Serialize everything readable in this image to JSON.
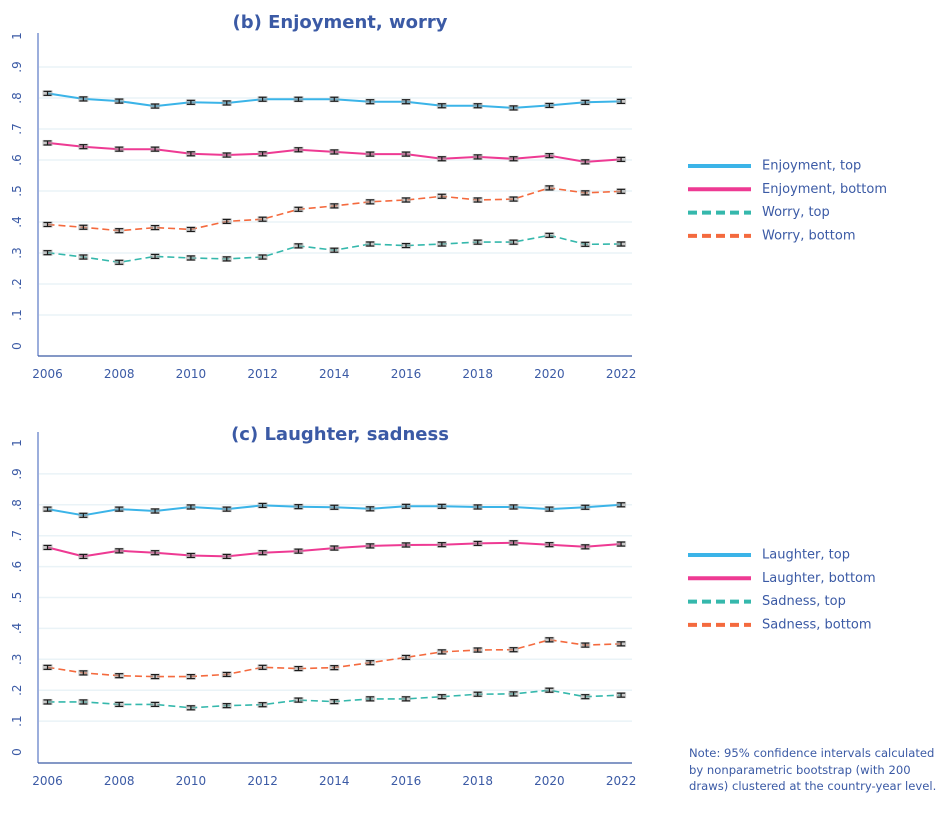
{
  "chart_data": [
    {
      "type": "line",
      "title": "(b) Enjoyment, worry",
      "xlabel": "",
      "ylabel": "",
      "x": [
        2006,
        2007,
        2008,
        2009,
        2010,
        2011,
        2012,
        2013,
        2014,
        2015,
        2016,
        2017,
        2018,
        2019,
        2020,
        2021,
        2022
      ],
      "x_ticks": [
        "2006",
        "2008",
        "2010",
        "2012",
        "2014",
        "2016",
        "2018",
        "2020",
        "2022"
      ],
      "x_tick_values": [
        2006,
        2008,
        2010,
        2012,
        2014,
        2016,
        2018,
        2020,
        2022
      ],
      "xlim": [
        2005.7,
        2022.3
      ],
      "ylim": [
        0,
        1
      ],
      "y_ticks": [
        "0",
        ".1",
        ".2",
        ".3",
        ".4",
        ".5",
        ".6",
        ".7",
        ".8",
        ".9",
        "1"
      ],
      "y_tick_values": [
        0,
        0.1,
        0.2,
        0.3,
        0.4,
        0.5,
        0.6,
        0.7,
        0.8,
        0.9,
        1.0
      ],
      "grid": true,
      "error_bars": "95% CI",
      "legend_position": "right",
      "series": [
        {
          "name": "Enjoyment, top",
          "color": "#3bb4e8",
          "style": "solid",
          "values": [
            0.815,
            0.797,
            0.79,
            0.774,
            0.786,
            0.784,
            0.796,
            0.796,
            0.796,
            0.788,
            0.788,
            0.775,
            0.775,
            0.768,
            0.776,
            0.786,
            0.789
          ]
        },
        {
          "name": "Enjoyment, bottom",
          "color": "#ee3a93",
          "style": "solid",
          "values": [
            0.655,
            0.643,
            0.635,
            0.635,
            0.62,
            0.616,
            0.62,
            0.633,
            0.626,
            0.619,
            0.619,
            0.604,
            0.61,
            0.604,
            0.614,
            0.594,
            0.602
          ]
        },
        {
          "name": "Worry, top",
          "color": "#35b8ac",
          "style": "dashed",
          "values": [
            0.301,
            0.287,
            0.27,
            0.289,
            0.284,
            0.281,
            0.287,
            0.323,
            0.309,
            0.329,
            0.324,
            0.329,
            0.335,
            0.335,
            0.357,
            0.328,
            0.329
          ]
        },
        {
          "name": "Worry, bottom",
          "color": "#f46a3e",
          "style": "dashed",
          "values": [
            0.392,
            0.383,
            0.372,
            0.382,
            0.376,
            0.402,
            0.409,
            0.441,
            0.452,
            0.465,
            0.471,
            0.483,
            0.471,
            0.474,
            0.51,
            0.494,
            0.499
          ]
        }
      ]
    },
    {
      "type": "line",
      "title": "(c) Laughter, sadness",
      "xlabel": "",
      "ylabel": "",
      "x": [
        2006,
        2007,
        2008,
        2009,
        2010,
        2011,
        2012,
        2013,
        2014,
        2015,
        2016,
        2017,
        2018,
        2019,
        2020,
        2021,
        2022
      ],
      "x_ticks": [
        "2006",
        "2008",
        "2010",
        "2012",
        "2014",
        "2016",
        "2018",
        "2020",
        "2022"
      ],
      "x_tick_values": [
        2006,
        2008,
        2010,
        2012,
        2014,
        2016,
        2018,
        2020,
        2022
      ],
      "xlim": [
        2005.7,
        2022.3
      ],
      "ylim": [
        0,
        1
      ],
      "y_ticks": [
        "0",
        ".1",
        ".2",
        ".3",
        ".4",
        ".5",
        ".6",
        ".7",
        ".8",
        ".9",
        "1"
      ],
      "y_tick_values": [
        0,
        0.1,
        0.2,
        0.3,
        0.4,
        0.5,
        0.6,
        0.7,
        0.8,
        0.9,
        1.0
      ],
      "grid": true,
      "error_bars": "95% CI",
      "legend_position": "right",
      "series": [
        {
          "name": "Laughter, top",
          "color": "#3bb4e8",
          "style": "solid",
          "values": [
            0.786,
            0.766,
            0.786,
            0.78,
            0.793,
            0.786,
            0.798,
            0.794,
            0.792,
            0.787,
            0.795,
            0.795,
            0.793,
            0.793,
            0.786,
            0.792,
            0.8
          ]
        },
        {
          "name": "Laughter, bottom",
          "color": "#ee3a93",
          "style": "solid",
          "values": [
            0.662,
            0.633,
            0.651,
            0.645,
            0.636,
            0.633,
            0.645,
            0.65,
            0.66,
            0.667,
            0.67,
            0.671,
            0.675,
            0.677,
            0.671,
            0.664,
            0.673
          ]
        },
        {
          "name": "Sadness, top",
          "color": "#35b8ac",
          "style": "dashed",
          "values": [
            0.162,
            0.162,
            0.154,
            0.154,
            0.143,
            0.15,
            0.153,
            0.168,
            0.163,
            0.172,
            0.172,
            0.179,
            0.187,
            0.188,
            0.2,
            0.179,
            0.184
          ]
        },
        {
          "name": "Sadness, bottom",
          "color": "#f46a3e",
          "style": "dashed",
          "values": [
            0.274,
            0.256,
            0.247,
            0.244,
            0.244,
            0.251,
            0.274,
            0.27,
            0.273,
            0.289,
            0.306,
            0.324,
            0.33,
            0.331,
            0.363,
            0.346,
            0.35
          ]
        }
      ]
    }
  ],
  "colors": {
    "text": "#3b5aa5",
    "axis": "#7b93d1",
    "grid": "#eaf3f7",
    "error_bar": "#1a1a1a"
  },
  "note": "Note: 95% confidence intervals calculated by nonparametric bootstrap (with 200 draws) clustered at the country-year level."
}
